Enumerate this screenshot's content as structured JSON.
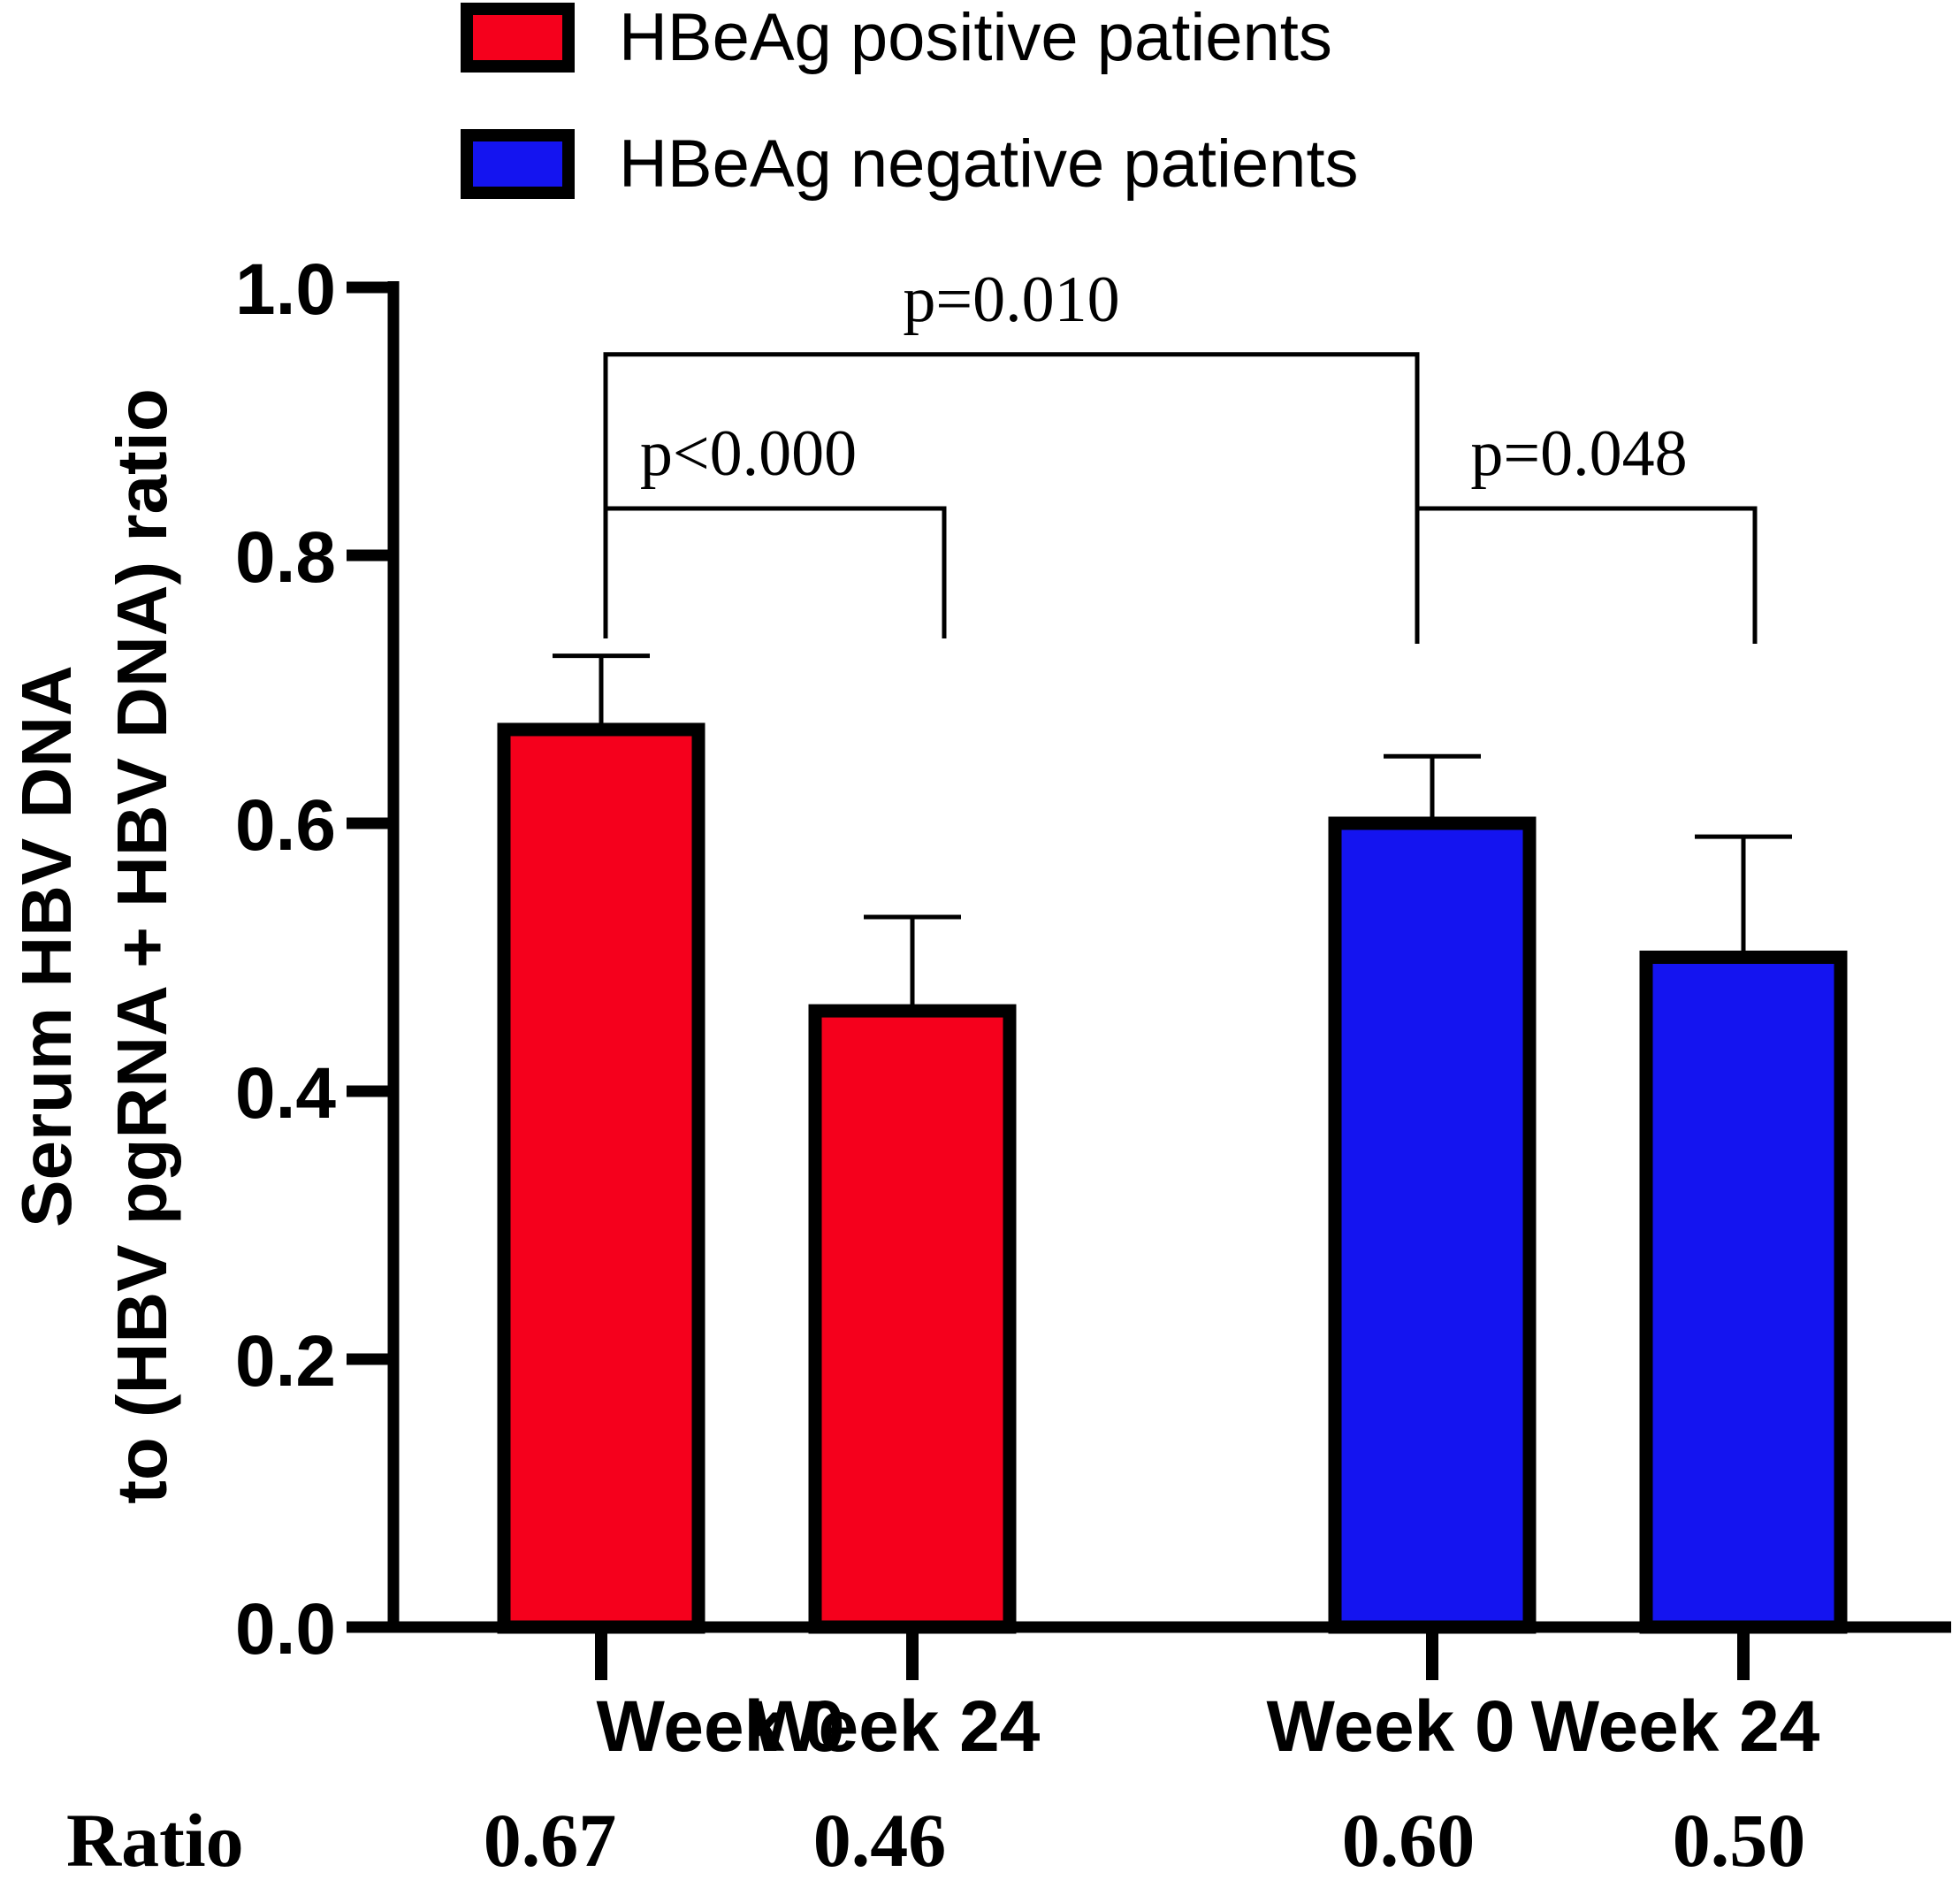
{
  "chart_data": {
    "type": "bar",
    "ylabel_line1": "Serum HBV DNA",
    "ylabel_line2": "to (HBV pgRNA + HBV DNA) ratio",
    "ylim": [
      0,
      1.0
    ],
    "yticks": [
      0.0,
      0.2,
      0.4,
      0.6,
      0.8,
      1.0
    ],
    "ytick_labels": [
      "0.0",
      "0.2",
      "0.4",
      "0.6",
      "0.8",
      "1.0"
    ],
    "legend": [
      {
        "name": "HBeAg positive patients",
        "color": "#f5001c"
      },
      {
        "name": "HBeAg negative patients",
        "color": "#1414f0"
      }
    ],
    "bars": [
      {
        "category": "Week 0",
        "group": "HBeAg positive patients",
        "value": 0.67,
        "error": 0.055,
        "color": "#f5001c"
      },
      {
        "category": "Week 24",
        "group": "HBeAg positive patients",
        "value": 0.46,
        "error": 0.07,
        "color": "#f5001c"
      },
      {
        "category": "Week 0",
        "group": "HBeAg negative patients",
        "value": 0.6,
        "error": 0.05,
        "color": "#1414f0"
      },
      {
        "category": "Week 24",
        "group": "HBeAg negative patients",
        "value": 0.5,
        "error": 0.09,
        "color": "#1414f0"
      }
    ],
    "ratio_label": "Ratio",
    "ratio_values": [
      "0.67",
      "0.46",
      "0.60",
      "0.50"
    ],
    "annotations": [
      {
        "text": "p<0.000",
        "from_bar": 0,
        "to_bar": 1,
        "level": 0.835
      },
      {
        "text": "p=0.048",
        "from_bar": 2,
        "to_bar": 3,
        "level": 0.835
      },
      {
        "text": "p=0.010",
        "from_bar": 0,
        "to_bar": 2,
        "level": 0.95
      }
    ]
  }
}
